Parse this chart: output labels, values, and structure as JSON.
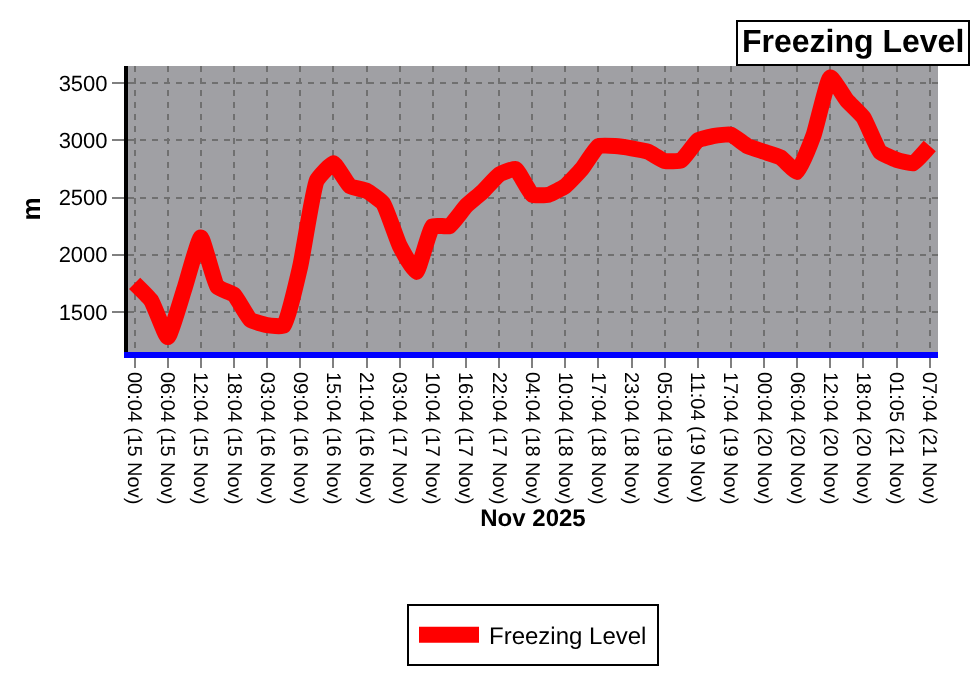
{
  "chart_data": {
    "type": "line",
    "title": "Freezing Level",
    "xlabel": "Nov 2025",
    "ylabel": "m",
    "categories": [
      "00:04 (15 Nov)",
      null,
      "06:04 (15 Nov)",
      null,
      "12:04 (15 Nov)",
      null,
      "18:04 (15 Nov)",
      null,
      "03:04 (16 Nov)",
      null,
      "09:04 (16 Nov)",
      null,
      "15:04 (16 Nov)",
      null,
      "21:04 (16 Nov)",
      null,
      "03:04 (17 Nov)",
      null,
      "10:04 (17 Nov)",
      null,
      "16:04 (17 Nov)",
      null,
      "22:04 (17 Nov)",
      null,
      "04:04 (18 Nov)",
      null,
      "10:04 (18 Nov)",
      null,
      "17:04 (18 Nov)",
      null,
      "23:04 (18 Nov)",
      null,
      "05:04 (19 Nov)",
      null,
      "11:04 (19 Nov)",
      null,
      "17:04 (19 Nov)",
      null,
      "00:04 (20 Nov)",
      null,
      "06:04 (20 Nov)",
      null,
      "12:04 (20 Nov)",
      null,
      "18:04 (20 Nov)",
      null,
      "01:05 (21 Nov)",
      null,
      "07:04 (21 Nov)"
    ],
    "series": [
      {
        "name": "Freezing Level",
        "color": "#ff0000",
        "values": [
          1750,
          1600,
          1280,
          1700,
          2150,
          1720,
          1650,
          1430,
          1385,
          1380,
          1900,
          2650,
          2800,
          2600,
          2560,
          2450,
          2080,
          1850,
          2250,
          2250,
          2425,
          2550,
          2700,
          2750,
          2525,
          2525,
          2600,
          2750,
          2950,
          2950,
          2930,
          2900,
          2820,
          2825,
          3000,
          3040,
          3050,
          2950,
          2900,
          2850,
          2725,
          3050,
          3550,
          3350,
          3200,
          2900,
          2830,
          2800,
          2950
        ]
      }
    ],
    "ylim": [
      1150,
      3650
    ],
    "yticks": [
      1500,
      2000,
      2500,
      3000,
      3500
    ],
    "grid": true,
    "legend": "bottom",
    "marker": "none",
    "line_style": "solid"
  }
}
